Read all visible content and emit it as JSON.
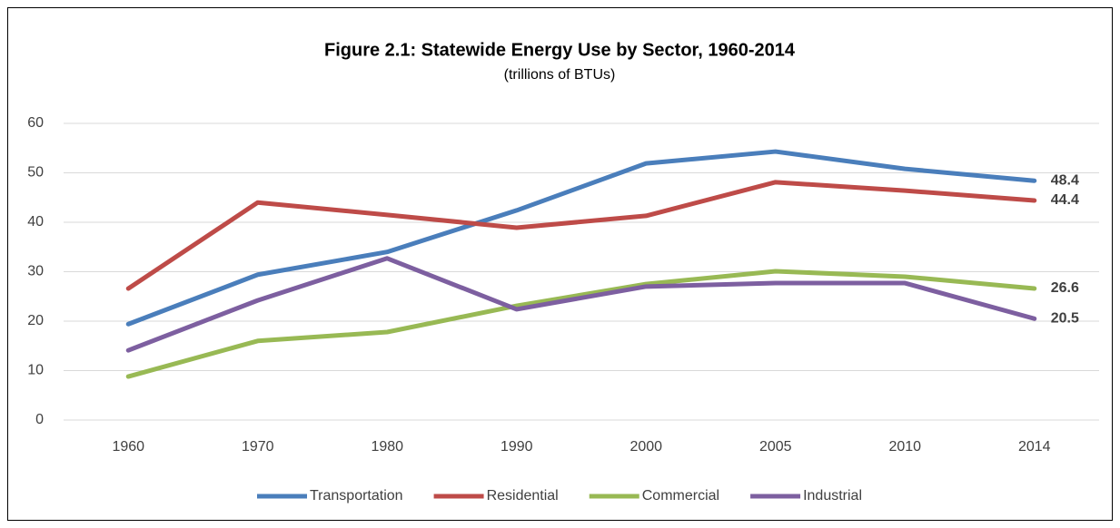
{
  "chart_data": {
    "type": "line",
    "title": "Figure 2.1: Statewide Energy Use by Sector, 1960-2014",
    "subtitle": "(trillions of BTUs)",
    "categories": [
      "1960",
      "1970",
      "1980",
      "1990",
      "2000",
      "2005",
      "2010",
      "2014"
    ],
    "series": [
      {
        "name": "Transportation",
        "color": "#4a7ebb",
        "values": [
          19.4,
          29.4,
          34.0,
          42.4,
          51.9,
          54.3,
          50.8,
          48.4
        ]
      },
      {
        "name": "Residential",
        "color": "#be4b48",
        "values": [
          26.6,
          44.0,
          41.5,
          38.9,
          41.3,
          48.1,
          46.4,
          44.4
        ]
      },
      {
        "name": "Commercial",
        "color": "#98b954",
        "values": [
          8.8,
          16.0,
          17.8,
          23.1,
          27.5,
          30.1,
          29.0,
          26.6
        ]
      },
      {
        "name": "Industrial",
        "color": "#7d5fa0",
        "values": [
          14.1,
          24.2,
          32.7,
          22.4,
          27.0,
          27.7,
          27.7,
          20.5
        ]
      }
    ],
    "ylim": [
      0,
      60
    ],
    "yticks": [
      0,
      10,
      20,
      30,
      40,
      50,
      60
    ],
    "grid": true,
    "legend": "bottom"
  }
}
